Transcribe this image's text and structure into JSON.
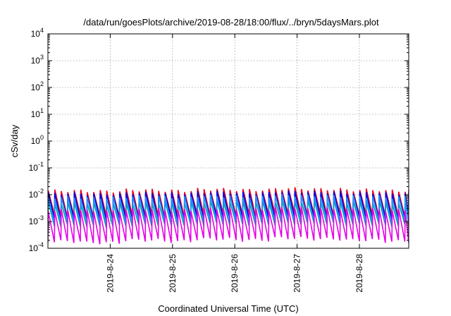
{
  "chart_data": {
    "type": "line",
    "title": "/data/run/goesPlots/archive/2019-08-28/18:00/flux/../bryn/5daysMars.plot",
    "xlabel": "Coordinated Universal Time (UTC)",
    "ylabel": "cSv/day",
    "y_scale": "log",
    "ylim": [
      0.0001,
      10000
    ],
    "xlim": [
      "2019-08-23 00:00",
      "2019-08-28 19:00"
    ],
    "grid": true,
    "legend": "none",
    "x_ticks": [
      "2019-8-24",
      "2019-8-25",
      "2019-8-26",
      "2019-8-27",
      "2019-8-28"
    ],
    "y_ticks": [
      {
        "base": "10",
        "exp": "-4"
      },
      {
        "base": "10",
        "exp": "-3"
      },
      {
        "base": "10",
        "exp": "-2"
      },
      {
        "base": "10",
        "exp": "-1"
      },
      {
        "base": "10",
        "exp": "0"
      },
      {
        "base": "10",
        "exp": "1"
      },
      {
        "base": "10",
        "exp": "2"
      },
      {
        "base": "10",
        "exp": "3"
      },
      {
        "base": "10",
        "exp": "4"
      }
    ],
    "cycle_hours": 2.5,
    "series": [
      {
        "color": "#e8001c",
        "width": 1.6,
        "peaks": [
          0.014,
          0.0135,
          0.015,
          0.014,
          0.016,
          0.015,
          0.017,
          0.016,
          0.015,
          0.014
        ],
        "troughs": [
          0.0016,
          0.0015,
          0.0017,
          0.0016,
          0.0018,
          0.0017,
          0.0019,
          0.0018,
          0.0017,
          0.0016
        ]
      },
      {
        "color": "#0000e6",
        "width": 1.6,
        "peaks": [
          0.011,
          0.0105,
          0.0115,
          0.011,
          0.0125,
          0.0115,
          0.013,
          0.0125,
          0.0118,
          0.011
        ],
        "troughs": [
          0.0012,
          0.00115,
          0.00125,
          0.0012,
          0.00135,
          0.00125,
          0.0014,
          0.00135,
          0.00128,
          0.0012
        ]
      },
      {
        "color": "#00a8a0",
        "width": 1.6,
        "peaks": [
          0.005,
          0.0048,
          0.0052,
          0.005,
          0.0058,
          0.0054,
          0.006,
          0.0058,
          0.0055,
          0.005
        ],
        "troughs": [
          0.0007,
          0.00065,
          0.00072,
          0.0007,
          0.0008,
          0.00075,
          0.00082,
          0.0008,
          0.00075,
          0.0007
        ]
      },
      {
        "color": "#1e90ff",
        "width": 1.6,
        "peaks": [
          0.008,
          0.0076,
          0.0085,
          0.008,
          0.009,
          0.0085,
          0.0095,
          0.009,
          0.0085,
          0.008
        ],
        "troughs": [
          0.0009,
          0.00085,
          0.00095,
          0.0009,
          0.001,
          0.00095,
          0.00105,
          0.001,
          0.00095,
          0.0009
        ]
      },
      {
        "color": "#e600e6",
        "width": 1.6,
        "peaks": [
          0.0026,
          0.0024,
          0.0028,
          0.0026,
          0.003,
          0.0028,
          0.0032,
          0.003,
          0.0028,
          0.0026
        ],
        "troughs": [
          0.00018,
          0.00016,
          0.0002,
          0.00018,
          0.00022,
          0.0002,
          0.00024,
          0.00022,
          0.0002,
          0.00018
        ]
      }
    ]
  }
}
